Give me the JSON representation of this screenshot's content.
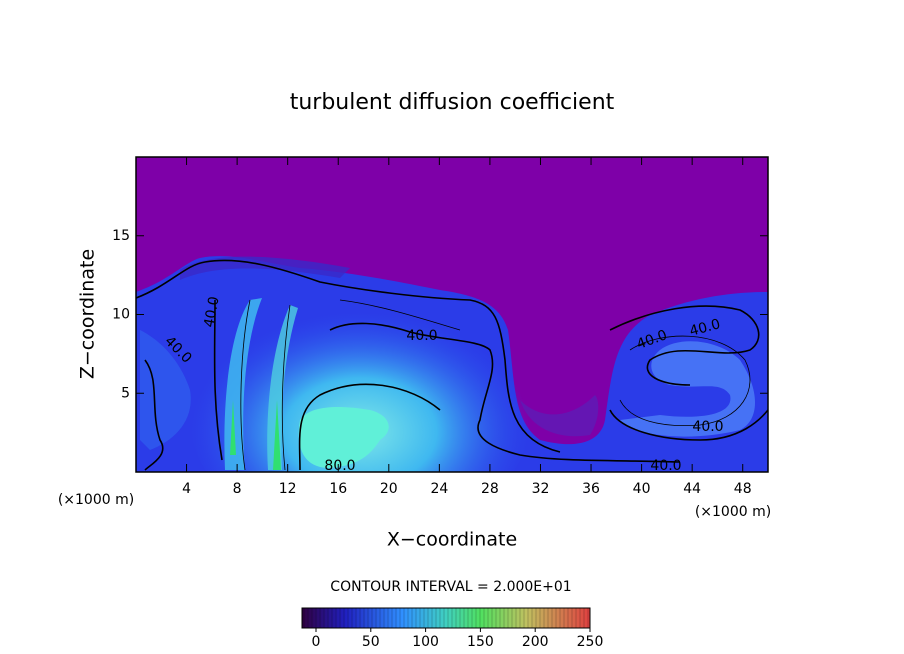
{
  "chart_data": {
    "type": "contour",
    "title": "turbulent diffusion coefficient",
    "x_label": "X−coordinate",
    "y_label": "Z−coordinate",
    "unit_labels": [
      "(×1000 m)",
      "(×1000 m)"
    ],
    "xlim": [
      0,
      50
    ],
    "ylim": [
      0,
      20
    ],
    "xticks": [
      4,
      8,
      12,
      16,
      20,
      24,
      28,
      32,
      36,
      40,
      44,
      48
    ],
    "yticks": [
      5,
      10,
      15
    ],
    "contour_labels": [
      {
        "value": 40,
        "label": "40.0"
      },
      {
        "value": 40,
        "label": "40.0"
      },
      {
        "value": 40,
        "label": "40.0"
      },
      {
        "value": 80,
        "label": "80.0"
      },
      {
        "value": 40,
        "label": "40.0"
      },
      {
        "value": 40,
        "label": "40.0"
      },
      {
        "value": 40,
        "label": "40.0"
      },
      {
        "value": 40,
        "label": "40.0"
      }
    ],
    "colorbar_title": "CONTOUR INTERVAL = 2.000E+01",
    "colorbar_lim": [
      0,
      250
    ],
    "colorbar_ticks": [
      0,
      50,
      100,
      150,
      200,
      250
    ]
  }
}
